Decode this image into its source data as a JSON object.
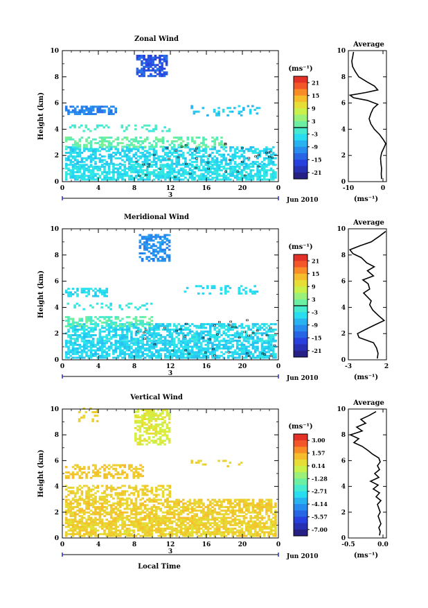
{
  "chart_data": [
    {
      "type": "heatmap",
      "title": "Zonal Wind",
      "ylabel": "Height (km)",
      "ylim": [
        0,
        10
      ],
      "xlim": [
        0,
        24
      ],
      "x_ticks": [
        "0",
        "4",
        "8",
        "12",
        "16",
        "20",
        "0"
      ],
      "y_ticks": [
        "0",
        "2",
        "4",
        "6",
        "8",
        "10"
      ],
      "day_label": "3",
      "date_label": "Jun 2010",
      "colorbar_unit": "(ms⁻¹)",
      "colorbar_ticks": [
        "21",
        "15",
        "9",
        "3",
        "-3",
        "-9",
        "-15",
        "-21"
      ],
      "colorbar_range": [
        -24,
        24
      ],
      "average": {
        "title": "Average",
        "xlabel": "(ms⁻¹)",
        "x_ticks": [
          "-10",
          "0"
        ],
        "xlim": [
          -10,
          1
        ],
        "height": [
          0.2,
          0.6,
          1.0,
          1.4,
          1.8,
          2.2,
          2.6,
          2.9,
          3.2,
          3.6,
          4.0,
          4.4,
          4.8,
          5.2,
          5.6,
          5.9,
          6.2,
          6.4,
          6.6,
          6.8,
          7.0,
          7.3,
          7.6,
          8.0,
          8.4,
          8.8,
          9.2,
          9.6,
          9.9
        ],
        "values": [
          -0.4,
          -0.5,
          -0.4,
          -0.6,
          -0.7,
          -0.4,
          0.3,
          0.8,
          0.1,
          -1.0,
          -2.5,
          -3.5,
          -4.0,
          -3.5,
          -2.8,
          -1.5,
          -4.5,
          -8.5,
          -9.5,
          -5.0,
          -1.5,
          -2.5,
          -4.5,
          -7.0,
          -8.0,
          -8.8,
          -9.0,
          -8.7,
          -8.5
        ]
      }
    },
    {
      "type": "heatmap",
      "title": "Meridional Wind",
      "ylabel": "Height (km)",
      "ylim": [
        0,
        10
      ],
      "xlim": [
        0,
        24
      ],
      "x_ticks": [
        "0",
        "4",
        "8",
        "12",
        "16",
        "20",
        "0"
      ],
      "y_ticks": [
        "0",
        "2",
        "4",
        "6",
        "8",
        "10"
      ],
      "day_label": "3",
      "date_label": "Jun 2010",
      "colorbar_unit": "(ms⁻¹)",
      "colorbar_ticks": [
        "21",
        "15",
        "9",
        "3",
        "-3",
        "-9",
        "-15",
        "-21"
      ],
      "colorbar_range": [
        -24,
        24
      ],
      "average": {
        "title": "Average",
        "xlabel": "(ms⁻¹)",
        "x_ticks": [
          "-3",
          "2"
        ],
        "xlim": [
          -3,
          2
        ],
        "height": [
          0.1,
          0.5,
          0.9,
          1.3,
          1.7,
          2.0,
          2.3,
          2.7,
          3.0,
          3.4,
          3.8,
          4.2,
          4.5,
          4.8,
          5.1,
          5.4,
          5.8,
          6.1,
          6.4,
          6.8,
          7.1,
          7.4,
          7.8,
          8.1,
          8.4,
          8.7,
          9.0,
          9.4,
          9.8
        ],
        "values": [
          0.8,
          0.9,
          0.7,
          0.3,
          -1.6,
          -1.8,
          -0.8,
          0.6,
          1.7,
          0.9,
          0.2,
          -0.2,
          0.0,
          -0.5,
          -1.0,
          -0.2,
          -0.4,
          -1.1,
          0.3,
          -0.5,
          0.4,
          -0.6,
          -1.3,
          -2.4,
          -2.8,
          -1.5,
          0.0,
          1.0,
          1.9
        ]
      }
    },
    {
      "type": "heatmap",
      "title": "Vertical Wind",
      "ylabel": "Height (km)",
      "xlabel": "Local Time",
      "ylim": [
        0,
        10
      ],
      "xlim": [
        0,
        24
      ],
      "x_ticks": [
        "0",
        "4",
        "8",
        "12",
        "16",
        "20",
        "0"
      ],
      "y_ticks": [
        "0",
        "2",
        "4",
        "6",
        "8",
        "10"
      ],
      "day_label": "3",
      "date_label": "Jun 2010",
      "colorbar_unit": "(ms⁻¹)",
      "colorbar_ticks": [
        "3.00",
        "1.57",
        "0.14",
        "-1.28",
        "-2.71",
        "-4.14",
        "-5.57",
        "-7.00"
      ],
      "colorbar_range": [
        -7.7,
        3.7
      ],
      "average": {
        "title": "Average",
        "xlabel": "(ms⁻¹)",
        "x_ticks": [
          "-0.5",
          "0.0"
        ],
        "xlim": [
          -0.5,
          0.05
        ],
        "height": [
          0.2,
          0.5,
          0.8,
          1.1,
          1.4,
          1.7,
          2.0,
          2.3,
          2.6,
          2.9,
          3.2,
          3.5,
          3.8,
          4.1,
          4.4,
          4.7,
          5.0,
          5.3,
          5.6,
          5.9,
          6.2,
          6.5,
          6.8,
          7.1,
          7.4,
          7.7,
          8.0,
          8.3,
          8.6,
          8.9,
          9.2,
          9.5,
          9.8
        ],
        "values": [
          -0.05,
          -0.04,
          -0.06,
          -0.03,
          -0.05,
          -0.07,
          -0.04,
          -0.06,
          -0.08,
          -0.03,
          -0.1,
          -0.05,
          -0.14,
          -0.07,
          -0.18,
          -0.06,
          -0.12,
          -0.05,
          -0.08,
          -0.04,
          -0.06,
          -0.15,
          -0.22,
          -0.3,
          -0.42,
          -0.35,
          -0.47,
          -0.3,
          -0.38,
          -0.25,
          -0.32,
          -0.2,
          -0.1
        ]
      }
    }
  ]
}
